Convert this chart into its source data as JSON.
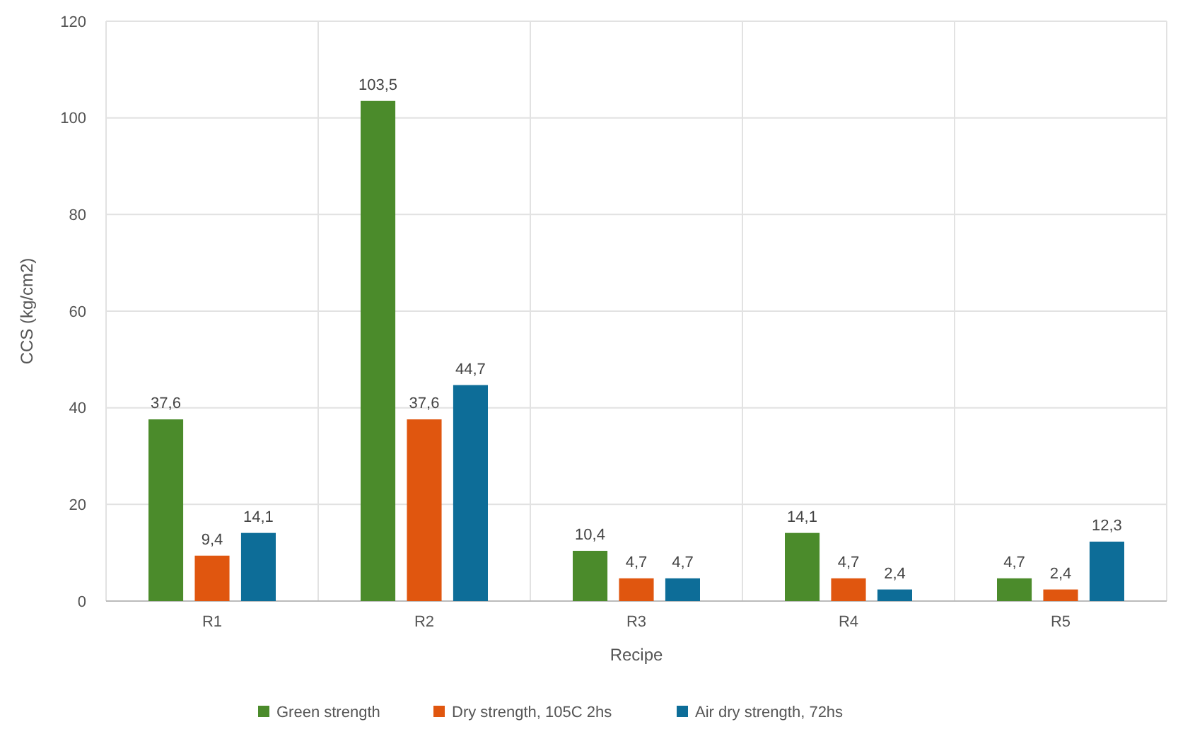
{
  "chart_data": {
    "type": "bar",
    "xlabel": "Recipe",
    "ylabel": "CCS (kg/cm2)",
    "categories": [
      "R1",
      "R2",
      "R3",
      "R4",
      "R5"
    ],
    "series": [
      {
        "name": "Green strength",
        "color": "#4b8b2b",
        "values": [
          37.6,
          103.5,
          10.4,
          14.1,
          4.7
        ],
        "value_labels": [
          "37,6",
          "103,5",
          "10,4",
          "14,1",
          "4,7"
        ]
      },
      {
        "name": "Dry strength, 105C 2hs",
        "color": "#e0560f",
        "values": [
          9.4,
          37.6,
          4.7,
          4.7,
          2.4
        ],
        "value_labels": [
          "9,4",
          "37,6",
          "4,7",
          "4,7",
          "2,4"
        ]
      },
      {
        "name": "Air dry strength, 72hs",
        "color": "#0d6d98",
        "values": [
          14.1,
          44.7,
          4.7,
          2.4,
          12.3
        ],
        "value_labels": [
          "14,1",
          "44,7",
          "4,7",
          "2,4",
          "12,3"
        ]
      }
    ],
    "ylim": [
      0,
      120
    ],
    "yticks": [
      0,
      20,
      40,
      60,
      80,
      100,
      120
    ],
    "grid": true,
    "legend": "bottom"
  }
}
